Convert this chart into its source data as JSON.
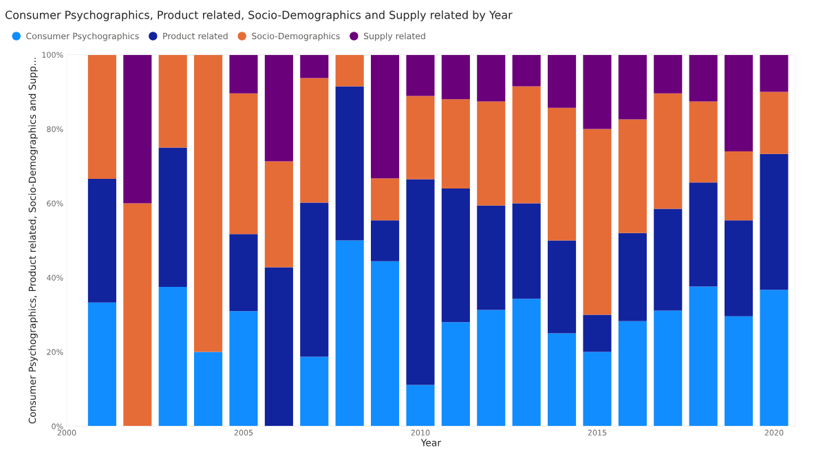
{
  "chart_data": {
    "type": "bar",
    "stacked": true,
    "title": "Consumer Psychographics, Product related, Socio-Demographics and Supply related by Year",
    "xlabel": "Year",
    "ylabel": "Consumer Psychographics, Product related, Socio-Demographics and Supp...",
    "x": [
      2001,
      2002,
      2003,
      2004,
      2005,
      2006,
      2007,
      2008,
      2009,
      2010,
      2011,
      2012,
      2013,
      2014,
      2015,
      2016,
      2017,
      2018,
      2019,
      2020
    ],
    "series": [
      {
        "name": "Consumer Psychographics",
        "color": "#118dff",
        "values": [
          33.3,
          0,
          37.5,
          20,
          31,
          0,
          18.7,
          50,
          44.4,
          11.1,
          28,
          31.3,
          34.3,
          25,
          20,
          28.3,
          31.1,
          37.6,
          29.6,
          36.7
        ]
      },
      {
        "name": "Product related",
        "color": "#12239e",
        "values": [
          33.3,
          0,
          37.5,
          0,
          20.7,
          42.8,
          41.5,
          41.5,
          11,
          55.4,
          36,
          28.1,
          25.7,
          25,
          10,
          23.7,
          27.4,
          28,
          25.8,
          36.6
        ]
      },
      {
        "name": "Socio-Demographics",
        "color": "#e66c37",
        "values": [
          33.4,
          60,
          25,
          80,
          37.9,
          28.5,
          33.5,
          8.5,
          11.3,
          22.4,
          24,
          28,
          31.5,
          35.7,
          50,
          30.6,
          31.1,
          21.8,
          18.6,
          16.7
        ]
      },
      {
        "name": "Supply related",
        "color": "#6b007b",
        "values": [
          0,
          40,
          0,
          0,
          10.4,
          28.7,
          6.3,
          0,
          33.3,
          11.1,
          12,
          12.6,
          8.5,
          14.3,
          20,
          17.4,
          10.4,
          12.6,
          26,
          10
        ]
      }
    ],
    "xlim": [
      2000,
      2020.6
    ],
    "xticks": [
      2000,
      2005,
      2010,
      2015,
      2020
    ],
    "ylim": [
      0,
      100
    ],
    "yticks": [
      {
        "value": 0,
        "label": "0%"
      },
      {
        "value": 20,
        "label": "20%"
      },
      {
        "value": 40,
        "label": "40%"
      },
      {
        "value": 60,
        "label": "60%"
      },
      {
        "value": 80,
        "label": "80%"
      },
      {
        "value": 100,
        "label": "100%"
      }
    ],
    "legend": "top left",
    "marker": "circle"
  }
}
